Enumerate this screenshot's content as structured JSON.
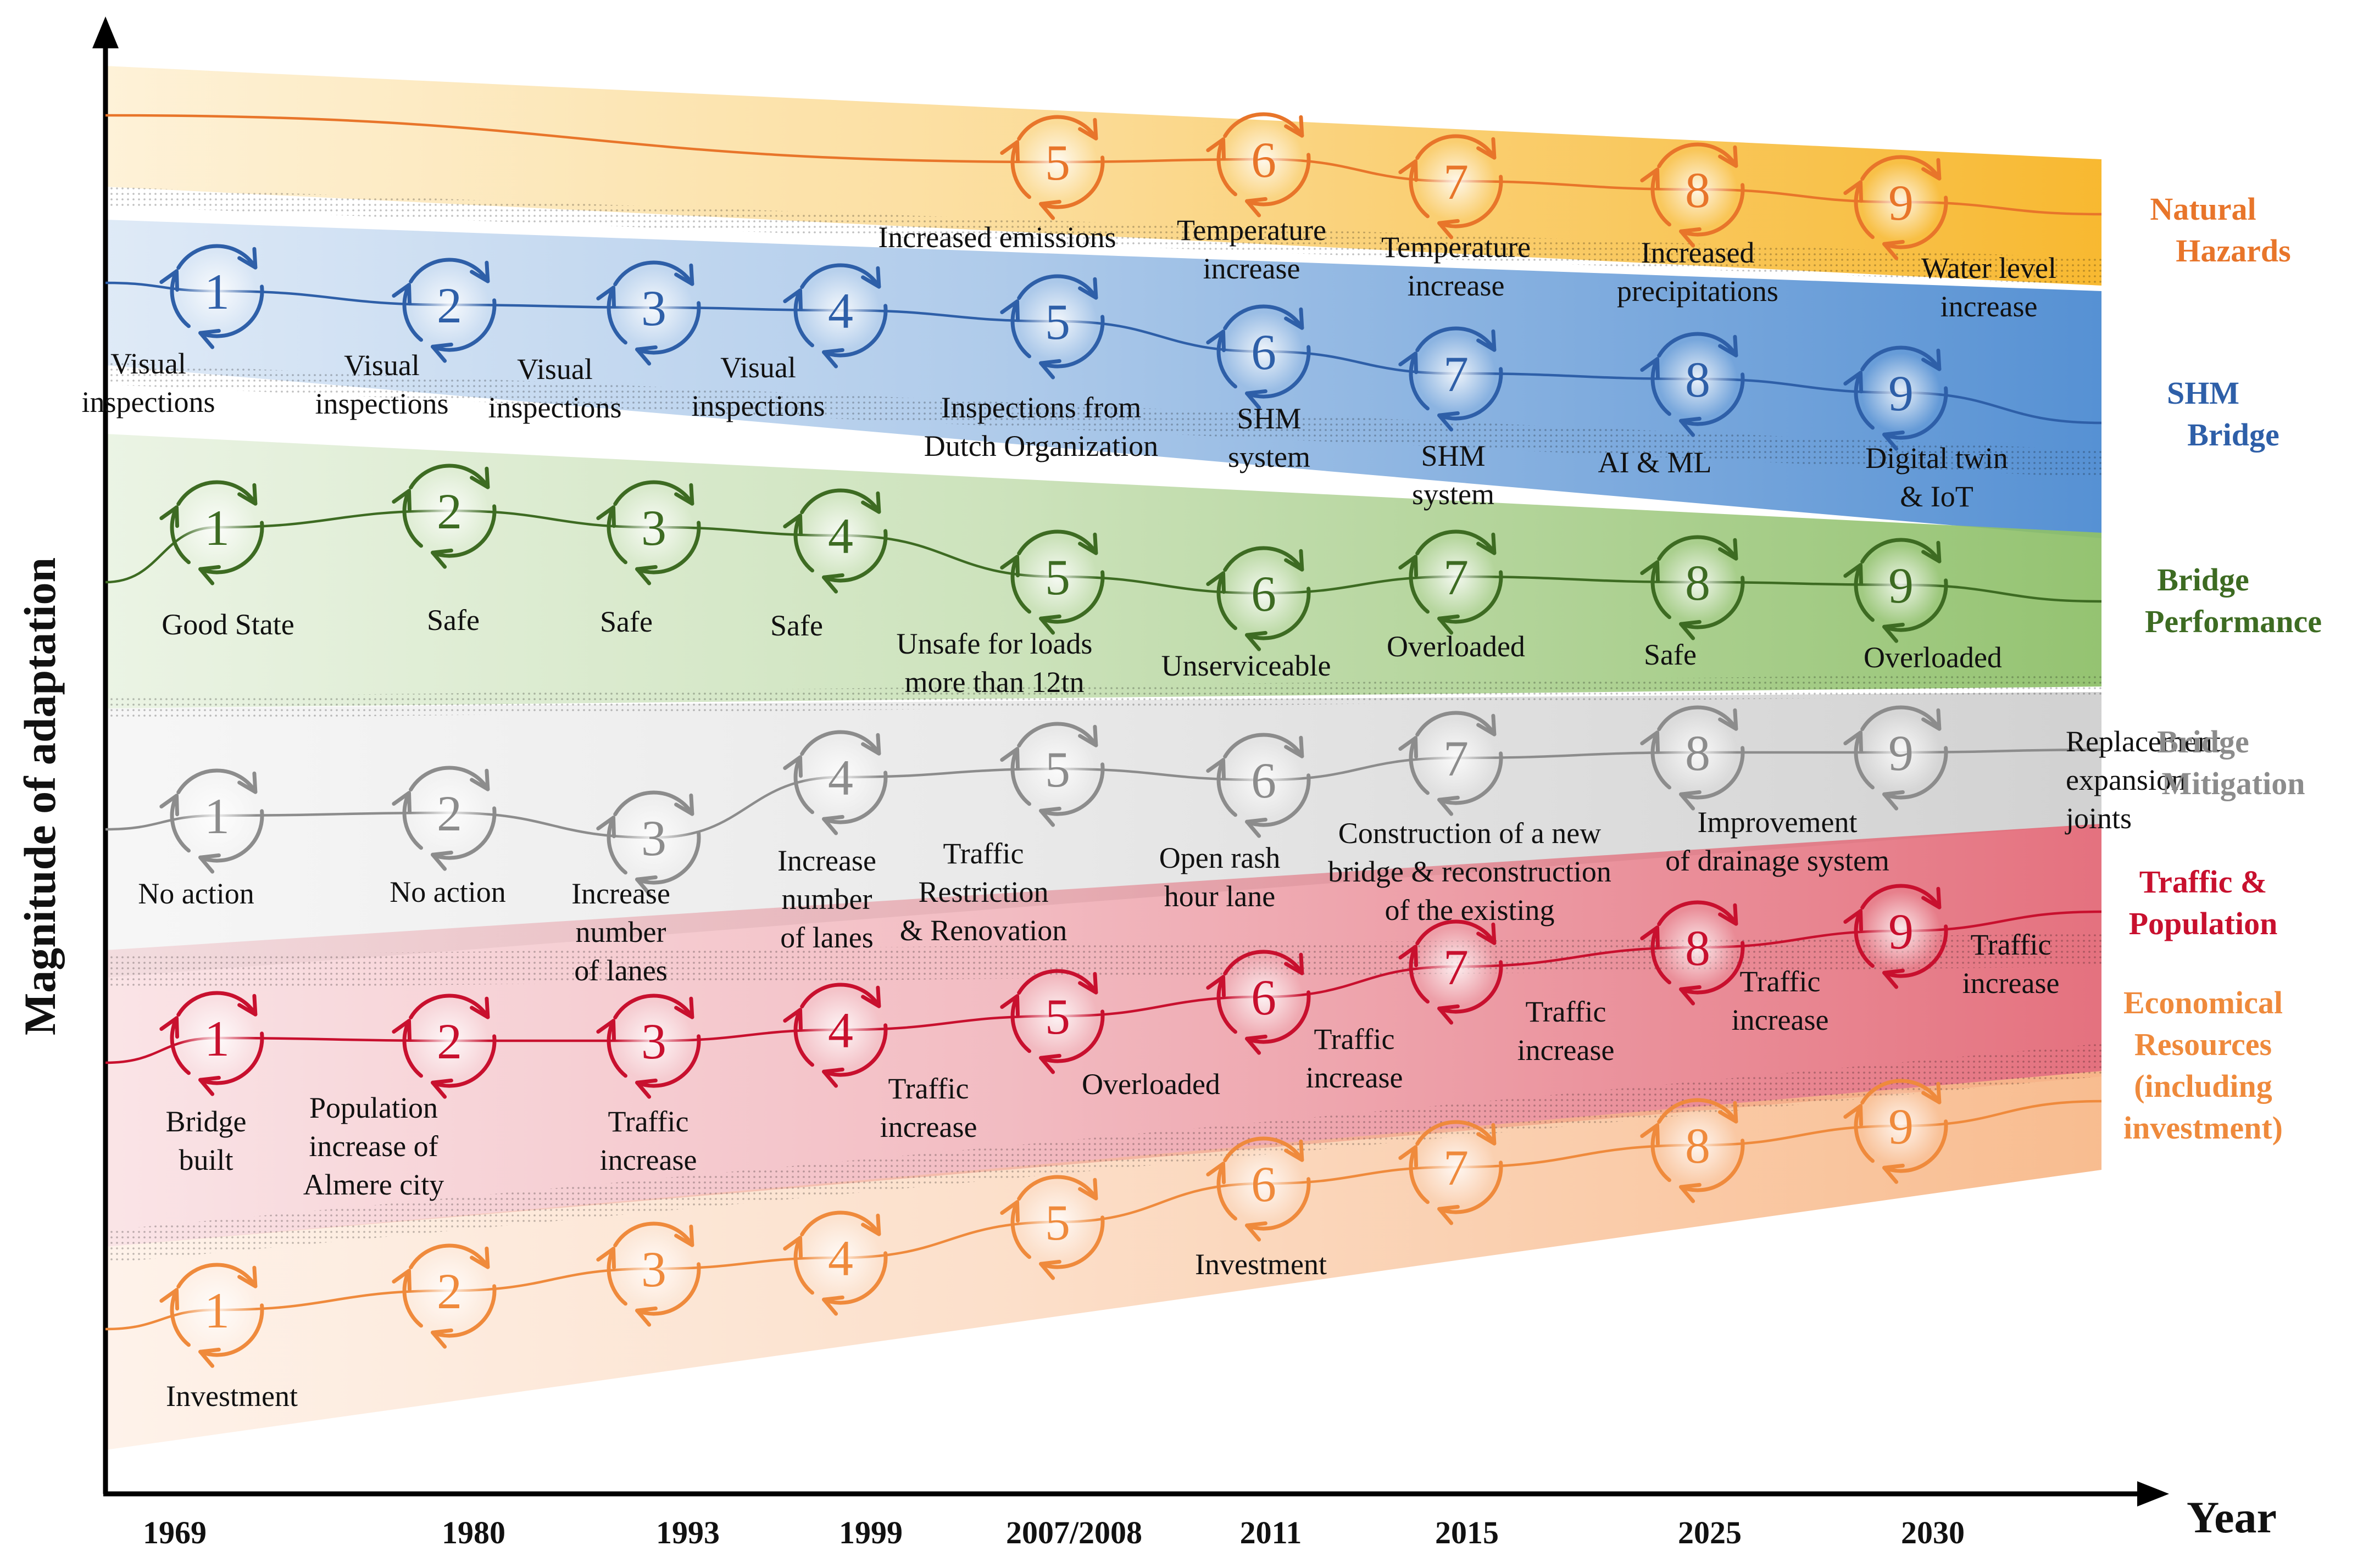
{
  "figure": {
    "y_axis_title": "Magnitude of adaptation",
    "x_axis_title": "Year",
    "years": [
      "1969",
      "1980",
      "1993",
      "1999",
      "2007/2008",
      "2011",
      "2015",
      "2025",
      "2030"
    ]
  },
  "layers": [
    {
      "key": "natural-hazards",
      "legend": [
        "Natural",
        "Hazards"
      ],
      "color": "#e8752a",
      "band_color": "#f7b526",
      "cycles": [
        {
          "n": "5",
          "label": [
            "Increased emissions"
          ]
        },
        {
          "n": "6",
          "label": [
            "Temperature",
            "increase"
          ]
        },
        {
          "n": "7",
          "label": [
            "Temperature",
            "increase"
          ]
        },
        {
          "n": "8",
          "label": [
            "Increased",
            "precipitations"
          ]
        },
        {
          "n": "9",
          "label": [
            "Water level",
            "increase"
          ]
        }
      ]
    },
    {
      "key": "shm-bridge",
      "legend": [
        "SHM",
        "Bridge"
      ],
      "color": "#2e5fa8",
      "band_color": "#4d8bd1",
      "cycles": [
        {
          "n": "1",
          "label": [
            "Visual",
            "inspections"
          ]
        },
        {
          "n": "2",
          "label": [
            "Visual",
            "inspections"
          ]
        },
        {
          "n": "3",
          "label": [
            "Visual",
            "inspections"
          ]
        },
        {
          "n": "4",
          "label": [
            "Visual",
            "inspections"
          ]
        },
        {
          "n": "5",
          "label": [
            "Inspections from",
            "Dutch Organization"
          ]
        },
        {
          "n": "6",
          "label": [
            "SHM",
            "system"
          ]
        },
        {
          "n": "7",
          "label": [
            "SHM",
            "system"
          ]
        },
        {
          "n": "8",
          "label": [
            "AI & ML"
          ]
        },
        {
          "n": "9",
          "label": [
            "Digital twin",
            "& IoT"
          ]
        }
      ]
    },
    {
      "key": "bridge-performance",
      "legend": [
        "Bridge",
        "Performance"
      ],
      "color": "#3d6b22",
      "band_color": "#8fc06a",
      "cycles": [
        {
          "n": "1",
          "label": [
            "Good State"
          ]
        },
        {
          "n": "2",
          "label": [
            "Safe"
          ]
        },
        {
          "n": "3",
          "label": [
            "Safe"
          ]
        },
        {
          "n": "4",
          "label": [
            "Safe"
          ]
        },
        {
          "n": "5",
          "label": [
            "Unsafe for loads",
            "more than 12tn"
          ]
        },
        {
          "n": "6",
          "label": [
            "Unserviceable"
          ]
        },
        {
          "n": "7",
          "label": [
            "Overloaded"
          ]
        },
        {
          "n": "8",
          "label": [
            "Safe"
          ]
        },
        {
          "n": "9",
          "label": [
            "Overloaded"
          ]
        }
      ]
    },
    {
      "key": "bridge-mitigation",
      "legend": [
        "Bridge",
        "Mitigation"
      ],
      "color": "#8c8c8c",
      "band_color": "#cfcfcf",
      "cycles": [
        {
          "n": "1",
          "label": [
            "No action"
          ]
        },
        {
          "n": "2",
          "label": [
            "No action"
          ]
        },
        {
          "n": "3",
          "label": [
            "Increase",
            "number",
            "of lanes"
          ]
        },
        {
          "n": "4",
          "label": [
            "Increase",
            "number",
            "of lanes"
          ]
        },
        {
          "n": "5",
          "label": [
            "Traffic",
            "Restriction",
            "& Renovation"
          ]
        },
        {
          "n": "6",
          "label": [
            "Open rash",
            "hour lane"
          ]
        },
        {
          "n": "7",
          "label": [
            "Construction of a new",
            "bridge & reconstruction",
            "of the existing"
          ]
        },
        {
          "n": "8",
          "label": [
            "Improvement",
            "of drainage system"
          ]
        },
        {
          "n": "9",
          "label": [
            "Replacement",
            "expansion",
            "joints"
          ]
        }
      ]
    },
    {
      "key": "traffic-population",
      "legend": [
        "Traffic &",
        "Population"
      ],
      "color": "#c8102e",
      "band_color": "#e36a78",
      "cycles": [
        {
          "n": "1",
          "label": [
            "Bridge",
            "built"
          ]
        },
        {
          "n": "2",
          "label": [
            "Population",
            "increase of",
            "Almere city"
          ]
        },
        {
          "n": "3",
          "label": [
            "Traffic",
            "increase"
          ]
        },
        {
          "n": "4",
          "label": [
            "Traffic",
            "increase"
          ]
        },
        {
          "n": "5",
          "label": [
            "Overloaded"
          ]
        },
        {
          "n": "6",
          "label": [
            "Traffic",
            "increase"
          ]
        },
        {
          "n": "7",
          "label": [
            "Traffic",
            "increase"
          ]
        },
        {
          "n": "8",
          "label": [
            "Traffic",
            "increase"
          ]
        },
        {
          "n": "9",
          "label": [
            "Traffic",
            "increase"
          ]
        }
      ]
    },
    {
      "key": "economical-resources",
      "legend": [
        "Economical",
        "Resources",
        "(including",
        "investment)"
      ],
      "color": "#ef8a3c",
      "band_color": "#f8b98a",
      "cycles": [
        {
          "n": "1",
          "label": [
            "Investment"
          ]
        },
        {
          "n": "2",
          "label": []
        },
        {
          "n": "3",
          "label": []
        },
        {
          "n": "4",
          "label": []
        },
        {
          "n": "5",
          "label": []
        },
        {
          "n": "6",
          "label": [
            "Investment"
          ]
        },
        {
          "n": "7",
          "label": []
        },
        {
          "n": "8",
          "label": []
        },
        {
          "n": "9",
          "label": []
        }
      ]
    }
  ]
}
